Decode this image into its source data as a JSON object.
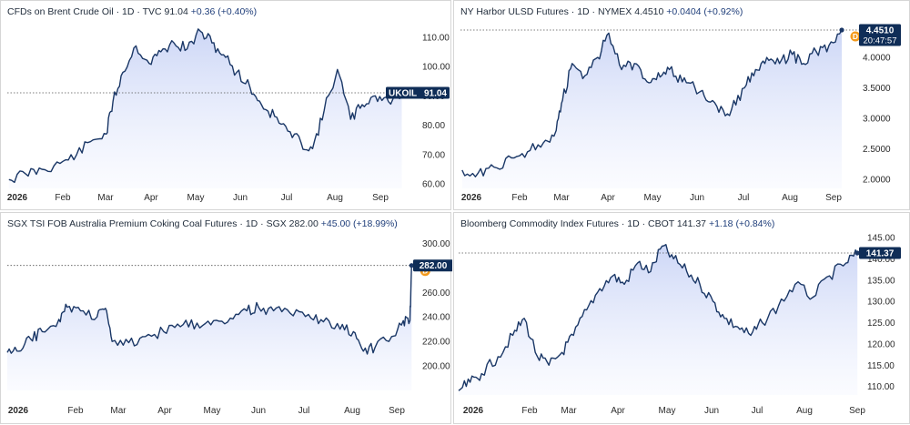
{
  "chart_data": [
    {
      "type": "area",
      "title_name": "CFDs on Brent Crude Oil",
      "title_meta": "· 1D · TVC",
      "last": "91.04",
      "change": "+0.36 (+0.40%)",
      "tag_label": "UKOIL",
      "tag_value": "91.04",
      "badge_time": "",
      "show_d": false,
      "x_labels": [
        "2026",
        "Feb",
        "Mar",
        "Apr",
        "May",
        "Jun",
        "Jul",
        "Aug",
        "Sep"
      ],
      "ylim": [
        58.5,
        115.5
      ],
      "yticks": [
        60,
        70,
        80,
        90,
        100,
        110
      ],
      "ytick_labels": [
        "60.00",
        "70.00",
        "80.00",
        "90.00",
        "100.00",
        "110.00"
      ],
      "x": [
        "2026-01-02",
        "2026-01-12",
        "2026-01-22",
        "2026-02-02",
        "2026-02-12",
        "2026-02-22",
        "2026-03-02",
        "2026-03-06",
        "2026-03-12",
        "2026-03-20",
        "2026-03-28",
        "2026-04-04",
        "2026-04-12",
        "2026-04-20",
        "2026-04-28",
        "2026-05-05",
        "2026-05-12",
        "2026-05-20",
        "2026-05-28",
        "2026-06-04",
        "2026-06-12",
        "2026-06-20",
        "2026-06-28",
        "2026-07-05",
        "2026-07-12",
        "2026-07-20",
        "2026-07-28",
        "2026-08-04",
        "2026-08-12",
        "2026-08-20",
        "2026-08-28"
      ],
      "values": [
        61.5,
        63.5,
        65,
        67,
        70,
        75,
        77,
        88,
        98,
        107,
        101,
        105,
        108,
        106,
        112,
        108,
        104,
        98,
        93,
        87,
        83,
        78,
        74,
        72,
        85,
        99,
        82,
        87,
        90,
        88,
        91.04
      ]
    },
    {
      "type": "area",
      "title_name": "NY Harbor ULSD Futures",
      "title_meta": "· 1D · NYMEX",
      "last": "4.4510",
      "change": "+0.0404 (+0.92%)",
      "tag_label": "",
      "tag_value": "4.4510",
      "badge_time": "20:47:57",
      "show_d": true,
      "x_labels": [
        "2026",
        "Feb",
        "Mar",
        "Apr",
        "May",
        "Jun",
        "Jul",
        "Aug",
        "Sep"
      ],
      "ylim": [
        1.85,
        4.6
      ],
      "yticks": [
        2.0,
        2.5,
        3.0,
        3.5,
        4.0
      ],
      "ytick_labels": [
        "2.0000",
        "2.5000",
        "3.0000",
        "3.5000",
        "4.0000"
      ],
      "x": [
        "2026-01-02",
        "2026-01-12",
        "2026-01-22",
        "2026-02-02",
        "2026-02-12",
        "2026-02-22",
        "2026-03-02",
        "2026-03-06",
        "2026-03-12",
        "2026-03-20",
        "2026-03-28",
        "2026-04-04",
        "2026-04-12",
        "2026-04-20",
        "2026-04-28",
        "2026-05-05",
        "2026-05-12",
        "2026-05-20",
        "2026-05-28",
        "2026-06-04",
        "2026-06-12",
        "2026-06-20",
        "2026-06-28",
        "2026-07-05",
        "2026-07-12",
        "2026-07-20",
        "2026-07-28",
        "2026-08-04",
        "2026-08-12",
        "2026-08-20",
        "2026-08-28"
      ],
      "values": [
        2.15,
        2.1,
        2.2,
        2.35,
        2.45,
        2.6,
        2.8,
        3.3,
        3.9,
        3.7,
        4.0,
        4.4,
        3.8,
        3.9,
        3.6,
        3.75,
        3.8,
        3.6,
        3.5,
        3.3,
        3.1,
        3.15,
        3.5,
        3.8,
        4.0,
        3.9,
        4.05,
        3.9,
        4.1,
        4.2,
        4.451
      ]
    },
    {
      "type": "area",
      "title_name": "SGX TSI FOB Australia Premium Coking Coal Futures",
      "title_meta": "· 1D · SGX",
      "last": "282.00",
      "change": "+45.00 (+18.99%)",
      "tag_label": "",
      "tag_value": "282.00",
      "badge_time": "",
      "show_d": true,
      "x_labels": [
        "2026",
        "Feb",
        "Mar",
        "Apr",
        "May",
        "Jun",
        "Jul",
        "Aug",
        "Sep"
      ],
      "ylim": [
        180,
        310
      ],
      "yticks": [
        200,
        220,
        240,
        260,
        280,
        300
      ],
      "ytick_labels": [
        "200.00",
        "220.00",
        "240.00",
        "260.00",
        "280.00",
        "300.00"
      ],
      "x": [
        "2026-01-01",
        "2026-01-08",
        "2026-01-15",
        "2026-01-22",
        "2026-02-01",
        "2026-02-06",
        "2026-02-14",
        "2026-02-24",
        "2026-03-01",
        "2026-03-05",
        "2026-03-15",
        "2026-03-25",
        "2026-04-05",
        "2026-04-15",
        "2026-04-25",
        "2026-05-05",
        "2026-05-15",
        "2026-05-25",
        "2026-06-01",
        "2026-06-10",
        "2026-06-20",
        "2026-07-01",
        "2026-07-10",
        "2026-07-20",
        "2026-07-28",
        "2026-08-03",
        "2026-08-10",
        "2026-08-20",
        "2026-08-27",
        "2026-08-31",
        "2026-09-01"
      ],
      "values": [
        211,
        212,
        222,
        228,
        238,
        248,
        245,
        240,
        247,
        220,
        219,
        224,
        228,
        232,
        235,
        237,
        239,
        245,
        248,
        245,
        243,
        242,
        236,
        230,
        228,
        212,
        215,
        224,
        237,
        237,
        282
      ]
    },
    {
      "type": "area",
      "title_name": "Bloomberg Commodity Index Futures",
      "title_meta": "· 1D · CBOT",
      "last": "141.37",
      "change": "+1.18 (+0.84%)",
      "tag_label": "",
      "tag_value": "141.37",
      "badge_time": "",
      "show_d": false,
      "x_labels": [
        "2026",
        "Feb",
        "Mar",
        "Apr",
        "May",
        "Jun",
        "Jul",
        "Aug",
        "Sep"
      ],
      "ylim": [
        108,
        146.5
      ],
      "yticks": [
        110,
        115,
        120,
        125,
        130,
        135,
        140,
        145
      ],
      "ytick_labels": [
        "110.00",
        "115.00",
        "120.00",
        "125.00",
        "130.00",
        "135.00",
        "140.00",
        "145.00"
      ],
      "x": [
        "2026-01-01",
        "2026-01-08",
        "2026-01-15",
        "2026-01-25",
        "2026-02-03",
        "2026-02-10",
        "2026-02-18",
        "2026-02-25",
        "2026-03-05",
        "2026-03-12",
        "2026-03-20",
        "2026-03-28",
        "2026-04-05",
        "2026-04-12",
        "2026-04-20",
        "2026-04-28",
        "2026-05-05",
        "2026-05-12",
        "2026-05-20",
        "2026-05-28",
        "2026-06-05",
        "2026-06-12",
        "2026-06-20",
        "2026-06-28",
        "2026-07-05",
        "2026-07-15",
        "2026-07-25",
        "2026-08-05",
        "2026-08-15",
        "2026-08-25",
        "2026-09-01"
      ],
      "values": [
        109,
        111,
        113,
        117,
        122,
        126,
        117,
        115,
        118,
        122,
        128,
        133,
        136,
        134,
        139,
        137,
        143,
        140,
        137,
        134,
        130,
        126,
        124,
        122,
        125,
        129,
        134,
        131,
        136,
        139,
        141.37
      ]
    }
  ],
  "colors": {
    "line": "#1a3766",
    "fill_top": "#c7d2f5",
    "fill_bottom": "#f6f8ff",
    "tag": "#0f2d57",
    "d_badge": "#f39a1c",
    "dotted": "#555555"
  }
}
